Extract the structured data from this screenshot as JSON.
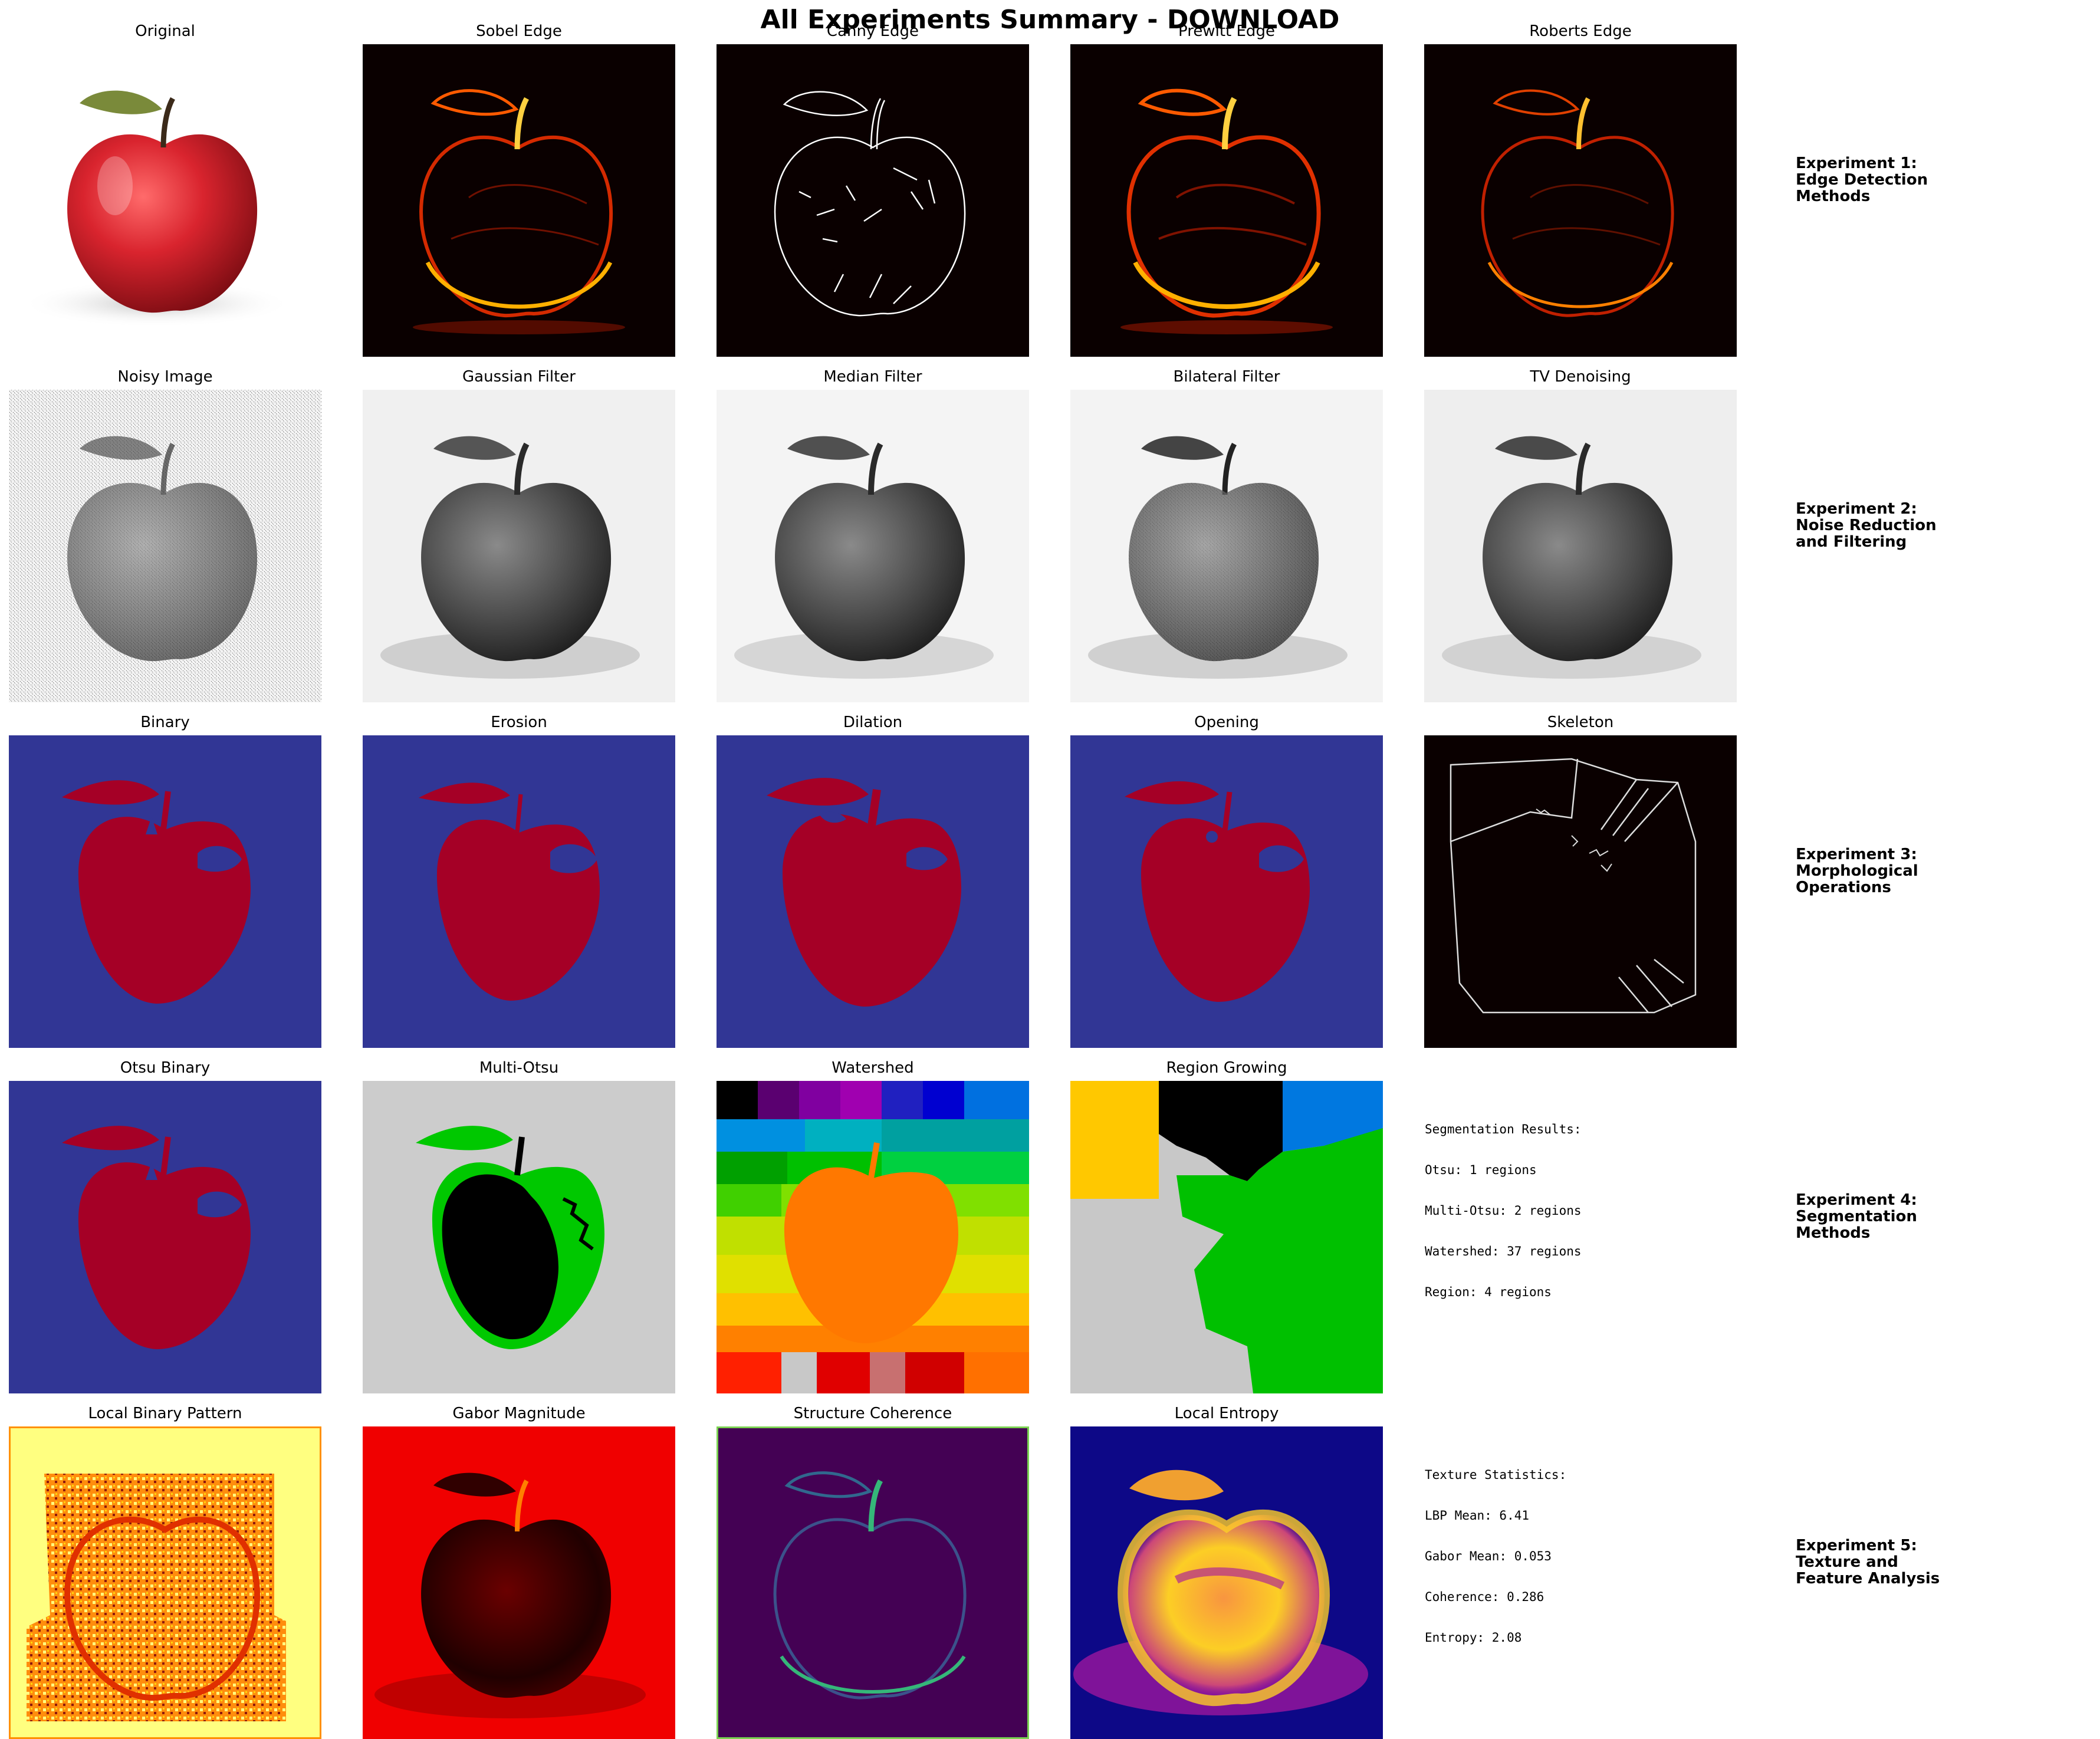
{
  "title": "All Experiments Summary - DOWNLOAD",
  "rows": [
    {
      "label_lines": [
        "Experiment 1:",
        "Edge Detection",
        "Methods"
      ],
      "panels": [
        "Original",
        "Sobel Edge",
        "Canny Edge",
        "Prewitt Edge",
        "Roberts Edge"
      ]
    },
    {
      "label_lines": [
        "Experiment 2:",
        "Noise Reduction",
        "and Filtering"
      ],
      "panels": [
        "Noisy Image",
        "Gaussian Filter",
        "Median Filter",
        "Bilateral Filter",
        "TV Denoising"
      ]
    },
    {
      "label_lines": [
        "Experiment 3:",
        "Morphological",
        "Operations"
      ],
      "panels": [
        "Binary",
        "Erosion",
        "Dilation",
        "Opening",
        "Skeleton"
      ]
    },
    {
      "label_lines": [
        "Experiment 4:",
        "Segmentation",
        "Methods"
      ],
      "panels": [
        "Otsu Binary",
        "Multi-Otsu",
        "Watershed",
        "Region Growing"
      ],
      "stats_lines": [
        "Segmentation Results:",
        "Otsu: 1 regions",
        "Multi-Otsu: 2 regions",
        "Watershed: 37 regions",
        "Region: 4 regions"
      ]
    },
    {
      "label_lines": [
        "Experiment 5:",
        "Texture and",
        "Feature Analysis"
      ],
      "panels": [
        "Local Binary Pattern",
        "Gabor Magnitude",
        "Structure Coherence",
        "Local Entropy"
      ],
      "stats_lines": [
        "Texture Statistics:",
        "LBP Mean: 6.41",
        "Gabor Mean: 0.053",
        "Coherence: 0.286",
        "Entropy: 2.08"
      ]
    }
  ],
  "colors": {
    "morph_background": "#313695",
    "morph_foreground": "#a50026",
    "edge_background": "#0a0000",
    "multi_otsu_gray": "#cccccc",
    "multi_otsu_green": "#00c800",
    "lbp_background": "#ffff80",
    "gabor_background": "#f00000",
    "coherence_background": "#440154",
    "entropy_background": "#0d0887"
  }
}
